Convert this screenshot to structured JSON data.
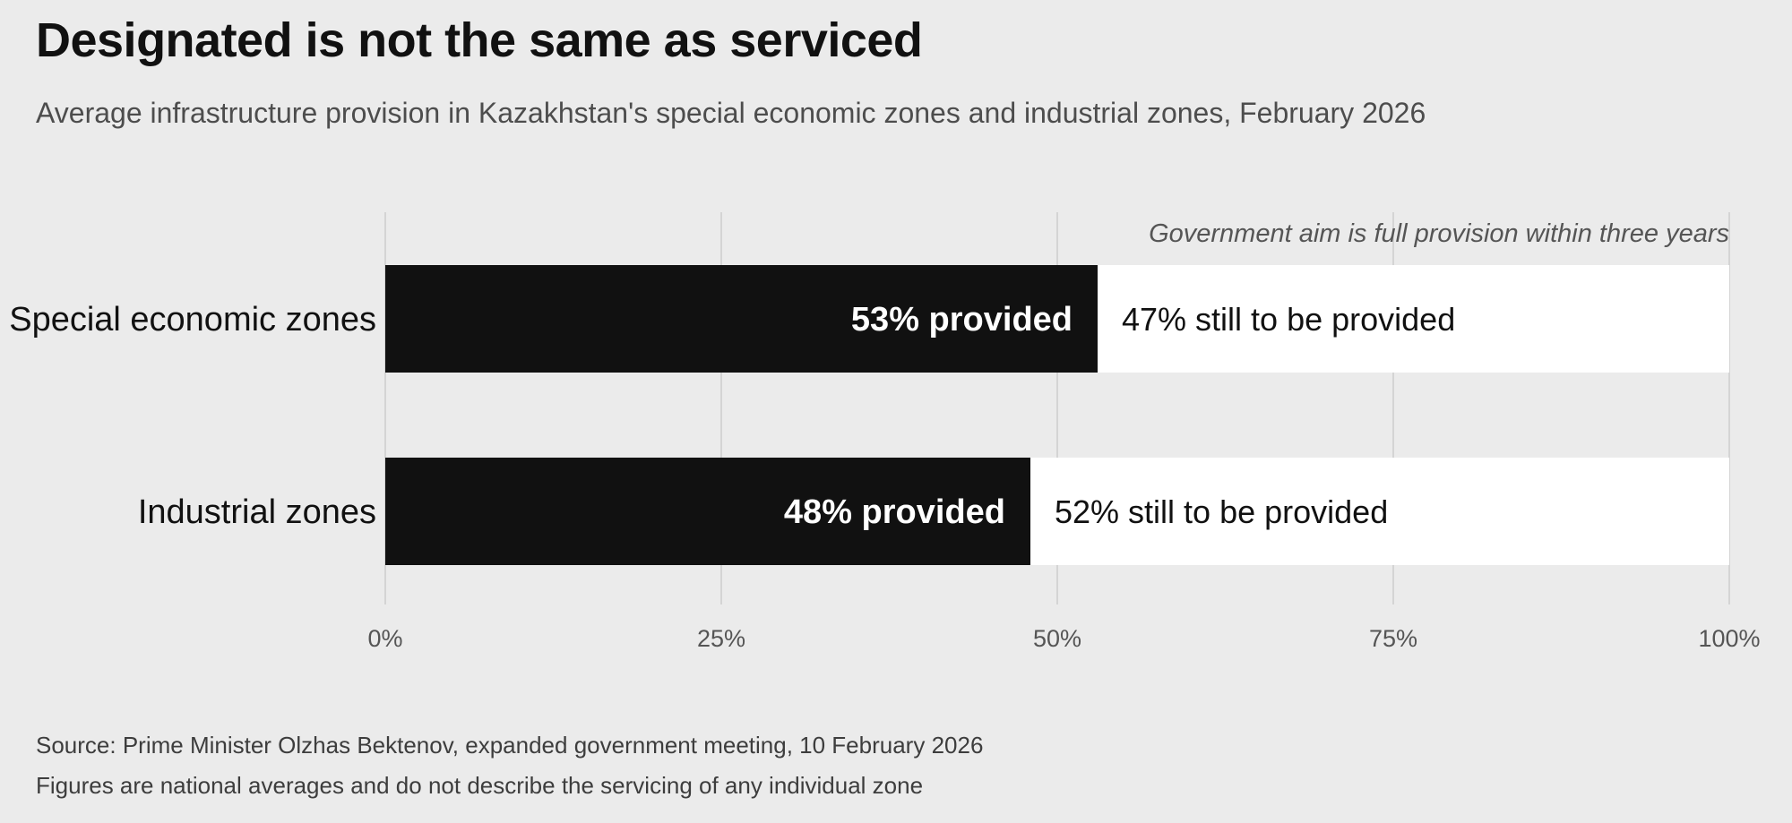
{
  "title": "Designated is not the same as serviced",
  "subtitle": "Average infrastructure provision in Kazakhstan's special economic zones and industrial zones, February 2026",
  "source": "Source: Prime Minister Olzhas Bektenov, expanded government meeting, 10 February 2026",
  "note": "Figures are national averages and do not describe the servicing of any individual zone",
  "colors": {
    "background": "#ebebeb",
    "provided": "#111111",
    "remaining": "#ffffff",
    "grid": "#cccccc",
    "tick_text": "#555555",
    "annotation": "#555555"
  },
  "chart_data": {
    "type": "bar",
    "orientation": "horizontal",
    "stacked": true,
    "categories": [
      "Special economic zones",
      "Industrial zones"
    ],
    "series": [
      {
        "key": "provided",
        "values": [
          53,
          48
        ],
        "labels": [
          "53% provided",
          "48% provided"
        ]
      },
      {
        "key": "remaining",
        "values": [
          47,
          52
        ],
        "labels": [
          "47% still to be provided",
          "52% still to be provided"
        ]
      }
    ],
    "xlim": [
      0,
      100
    ],
    "xticks": [
      0,
      25,
      50,
      75,
      100
    ],
    "xtick_labels": [
      "0%",
      "25%",
      "50%",
      "75%",
      "100%"
    ],
    "grid": true,
    "legend": "none",
    "annotation": "Government aim is full provision within three years"
  }
}
